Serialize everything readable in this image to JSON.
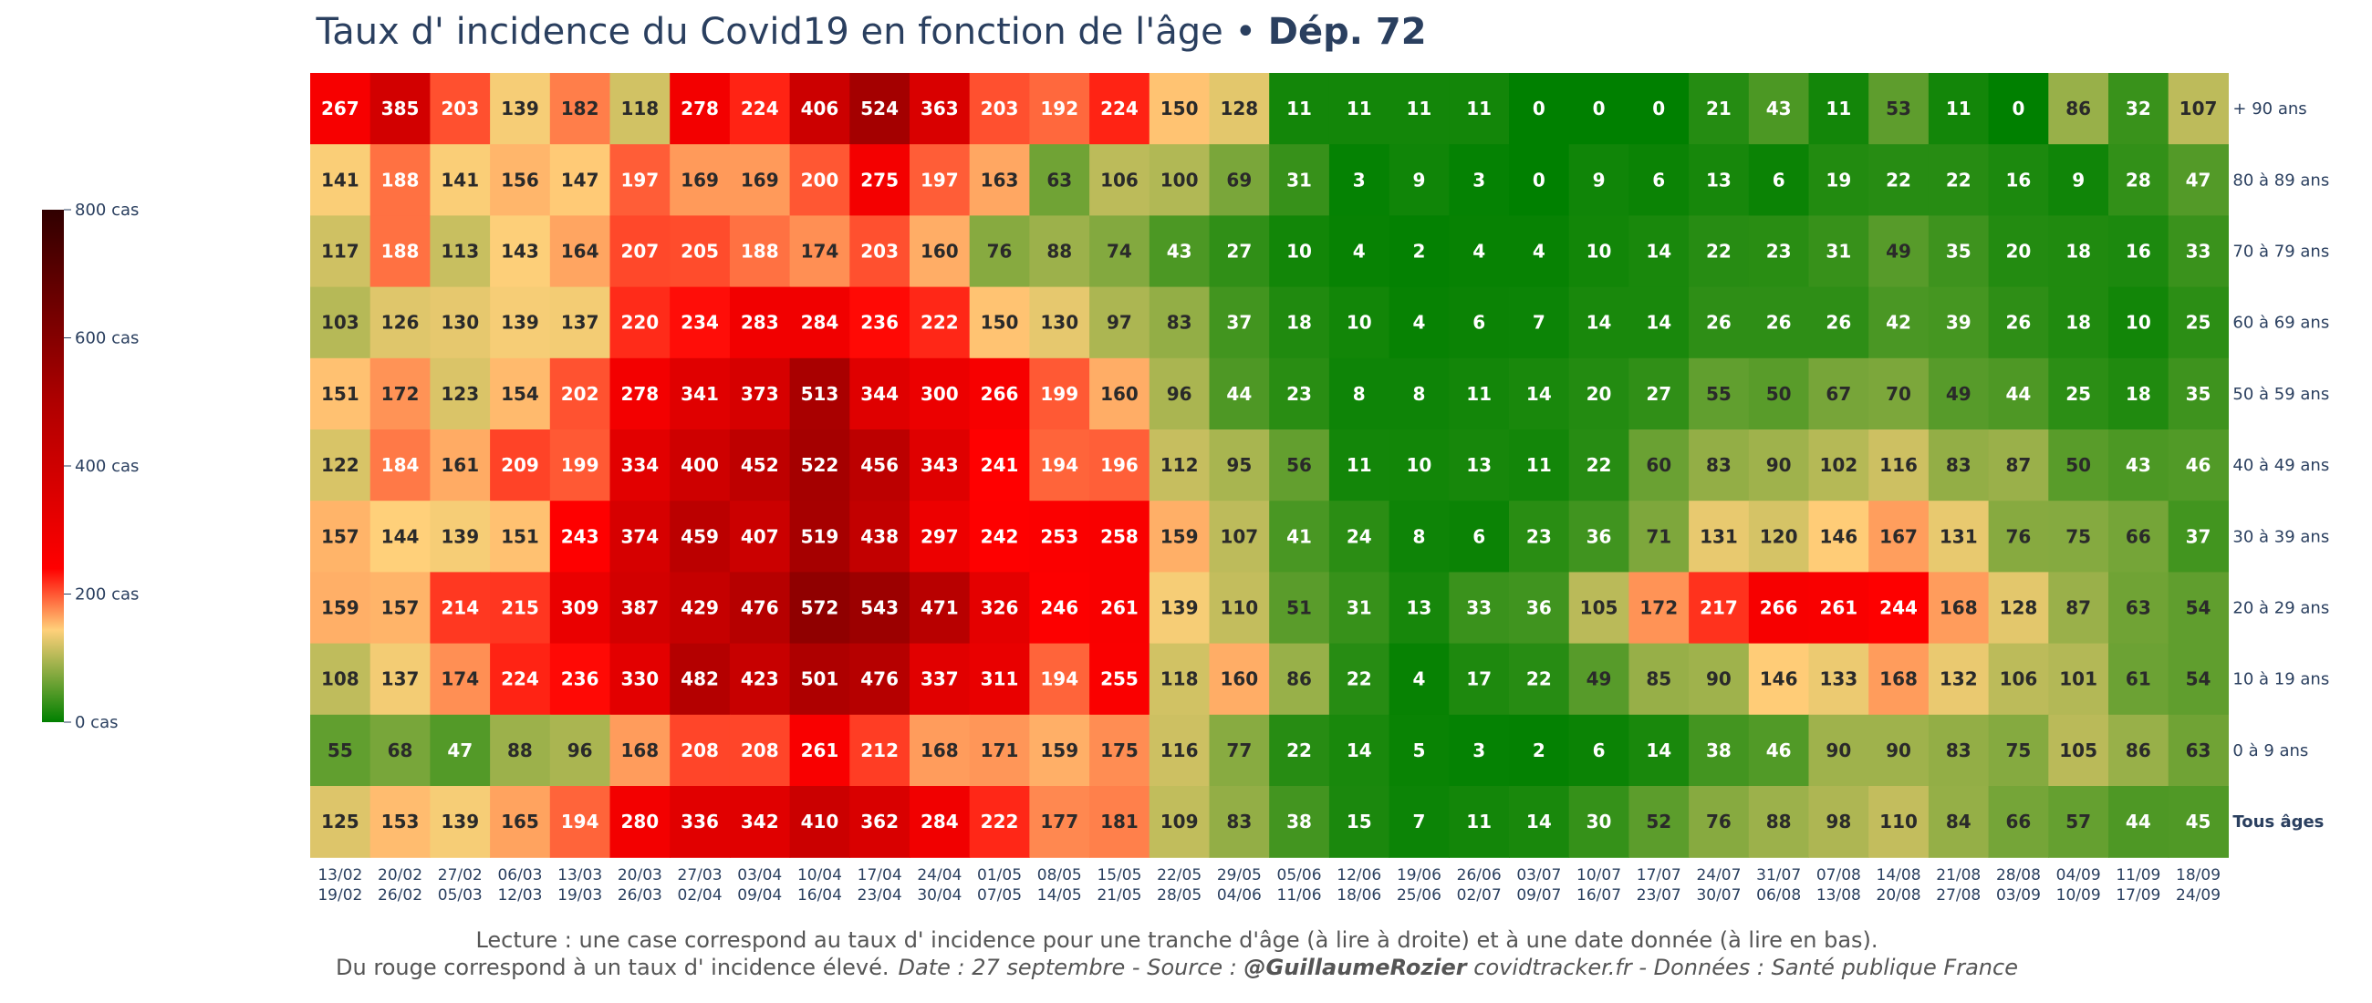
{
  "title": {
    "main": "Taux d' incidence du Covid19 en fonction de l'âge",
    "separator": " • ",
    "department": "Dép. 72"
  },
  "footer": {
    "line1": "Lecture : une case correspond au taux d' incidence pour une tranche d'âge (à lire à droite) et à une date donnée (à lire en bas).",
    "line2_plain": "Du rouge correspond à un taux d' incidence élevé.",
    "line2_italic_a": "Date : 27 septembre - Source : ",
    "line2_bold": "@GuillaumeRozier",
    "line2_italic_b": " covidtracker.fr - Données : Santé publique France"
  },
  "colors": {
    "title": "#2a3f5f",
    "footer": "#555555",
    "scale": [
      "#008000",
      "#ffd07a",
      "#ff0000",
      "#b00000",
      "#300000"
    ]
  },
  "chart_data": {
    "type": "heatmap",
    "title": "Taux d' incidence du Covid19 en fonction de l'âge • Dép. 72",
    "x_labels": [
      [
        "13/02",
        "19/02"
      ],
      [
        "20/02",
        "26/02"
      ],
      [
        "27/02",
        "05/03"
      ],
      [
        "06/03",
        "12/03"
      ],
      [
        "13/03",
        "19/03"
      ],
      [
        "20/03",
        "26/03"
      ],
      [
        "27/03",
        "02/04"
      ],
      [
        "03/04",
        "09/04"
      ],
      [
        "10/04",
        "16/04"
      ],
      [
        "17/04",
        "23/04"
      ],
      [
        "24/04",
        "30/04"
      ],
      [
        "01/05",
        "07/05"
      ],
      [
        "08/05",
        "14/05"
      ],
      [
        "15/05",
        "21/05"
      ],
      [
        "22/05",
        "28/05"
      ],
      [
        "29/05",
        "04/06"
      ],
      [
        "05/06",
        "11/06"
      ],
      [
        "12/06",
        "18/06"
      ],
      [
        "19/06",
        "25/06"
      ],
      [
        "26/06",
        "02/07"
      ],
      [
        "03/07",
        "09/07"
      ],
      [
        "10/07",
        "16/07"
      ],
      [
        "17/07",
        "23/07"
      ],
      [
        "24/07",
        "30/07"
      ],
      [
        "31/07",
        "06/08"
      ],
      [
        "07/08",
        "13/08"
      ],
      [
        "14/08",
        "20/08"
      ],
      [
        "21/08",
        "27/08"
      ],
      [
        "28/08",
        "03/09"
      ],
      [
        "04/09",
        "10/09"
      ],
      [
        "11/09",
        "17/09"
      ],
      [
        "18/09",
        "24/09"
      ]
    ],
    "y_labels": [
      "+ 90 ans",
      "80 à 89 ans",
      "70 à 79 ans",
      "60 à 69 ans",
      "50 à 59 ans",
      "40 à 49 ans",
      "30 à 39 ans",
      "20 à 29 ans",
      "10 à 19 ans",
      "0 à 9 ans",
      "Tous âges"
    ],
    "bold_row": "Tous âges",
    "zmin": 0,
    "zmax": 800,
    "colorbar_ticks": [
      {
        "value": 800,
        "label": "800 cas"
      },
      {
        "value": 600,
        "label": "600 cas"
      },
      {
        "value": 400,
        "label": "400 cas"
      },
      {
        "value": 200,
        "label": "200 cas"
      },
      {
        "value": 0,
        "label": "0 cas"
      }
    ],
    "values": [
      [
        267,
        385,
        203,
        139,
        182,
        118,
        278,
        224,
        406,
        524,
        363,
        203,
        192,
        224,
        150,
        128,
        11,
        11,
        11,
        11,
        0,
        0,
        0,
        21,
        43,
        11,
        53,
        11,
        0,
        86,
        32,
        107
      ],
      [
        141,
        188,
        141,
        156,
        147,
        197,
        169,
        169,
        200,
        275,
        197,
        163,
        63,
        106,
        100,
        69,
        31,
        3,
        9,
        3,
        0,
        9,
        6,
        13,
        6,
        19,
        22,
        22,
        16,
        9,
        28,
        47
      ],
      [
        117,
        188,
        113,
        143,
        164,
        207,
        205,
        188,
        174,
        203,
        160,
        76,
        88,
        74,
        43,
        27,
        10,
        4,
        2,
        4,
        4,
        10,
        14,
        22,
        23,
        31,
        49,
        35,
        20,
        18,
        16,
        33
      ],
      [
        103,
        126,
        130,
        139,
        137,
        220,
        234,
        283,
        284,
        236,
        222,
        150,
        130,
        97,
        83,
        37,
        18,
        10,
        4,
        6,
        7,
        14,
        14,
        26,
        26,
        26,
        42,
        39,
        26,
        18,
        10,
        25
      ],
      [
        151,
        172,
        123,
        154,
        202,
        278,
        341,
        373,
        513,
        344,
        300,
        266,
        199,
        160,
        96,
        44,
        23,
        8,
        8,
        11,
        14,
        20,
        27,
        55,
        50,
        67,
        70,
        49,
        44,
        25,
        18,
        35
      ],
      [
        122,
        184,
        161,
        209,
        199,
        334,
        400,
        452,
        522,
        456,
        343,
        241,
        194,
        196,
        112,
        95,
        56,
        11,
        10,
        13,
        11,
        22,
        60,
        83,
        90,
        102,
        116,
        83,
        87,
        50,
        43,
        46
      ],
      [
        157,
        144,
        139,
        151,
        243,
        374,
        459,
        407,
        519,
        438,
        297,
        242,
        253,
        258,
        159,
        107,
        41,
        24,
        8,
        6,
        23,
        36,
        71,
        131,
        120,
        146,
        167,
        131,
        76,
        75,
        66,
        37
      ],
      [
        159,
        157,
        214,
        215,
        309,
        387,
        429,
        476,
        572,
        543,
        471,
        326,
        246,
        261,
        139,
        110,
        51,
        31,
        13,
        33,
        36,
        105,
        172,
        217,
        266,
        261,
        244,
        168,
        128,
        87,
        63,
        54
      ],
      [
        108,
        137,
        174,
        224,
        236,
        330,
        482,
        423,
        501,
        476,
        337,
        311,
        194,
        255,
        118,
        160,
        86,
        22,
        4,
        17,
        22,
        49,
        85,
        90,
        146,
        133,
        168,
        132,
        106,
        101,
        61,
        54
      ],
      [
        55,
        68,
        47,
        88,
        96,
        168,
        208,
        208,
        261,
        212,
        168,
        171,
        159,
        175,
        116,
        77,
        22,
        14,
        5,
        3,
        2,
        6,
        14,
        38,
        46,
        90,
        90,
        83,
        75,
        105,
        86,
        63
      ],
      [
        125,
        153,
        139,
        165,
        194,
        280,
        336,
        342,
        410,
        362,
        284,
        222,
        177,
        181,
        109,
        83,
        38,
        15,
        7,
        11,
        14,
        30,
        52,
        76,
        88,
        98,
        110,
        84,
        66,
        57,
        44,
        45
      ]
    ]
  }
}
